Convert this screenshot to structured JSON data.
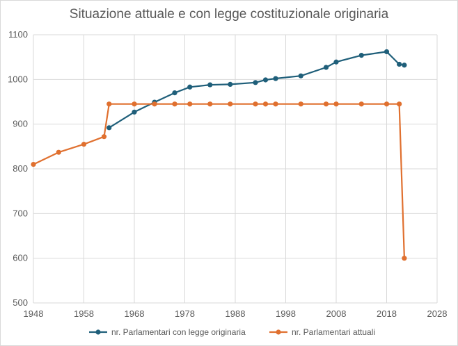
{
  "chart_data": {
    "type": "line",
    "title": "Situazione attuale e con legge costituzionale originaria",
    "xlabel": "",
    "ylabel": "",
    "xlim": [
      1948,
      2028
    ],
    "ylim": [
      500,
      1100
    ],
    "x_ticks": [
      1948,
      1958,
      1968,
      1978,
      1988,
      1998,
      2008,
      2018,
      2028
    ],
    "y_ticks": [
      500,
      600,
      700,
      800,
      900,
      1000,
      1100
    ],
    "grid": true,
    "legend_position": "bottom",
    "series": [
      {
        "name": "nr. Parlamentari con legge originaria",
        "color": "#1f5f7a",
        "points": [
          [
            1963,
            892
          ],
          [
            1968,
            927
          ],
          [
            1972,
            949
          ],
          [
            1976,
            970
          ],
          [
            1979,
            983
          ],
          [
            1983,
            988
          ],
          [
            1987,
            989
          ],
          [
            1992,
            993
          ],
          [
            1994,
            999
          ],
          [
            1996,
            1002
          ],
          [
            2001,
            1008
          ],
          [
            2006,
            1027
          ],
          [
            2008,
            1039
          ],
          [
            2013,
            1054
          ],
          [
            2018,
            1062
          ],
          [
            2020.5,
            1034
          ],
          [
            2021.5,
            1032
          ]
        ]
      },
      {
        "name": "nr. Parlamentari attuali",
        "color": "#e0702f",
        "points": [
          [
            1948,
            810
          ],
          [
            1953,
            837
          ],
          [
            1958,
            855
          ],
          [
            1962,
            872
          ],
          [
            1963,
            945
          ],
          [
            1968,
            945
          ],
          [
            1972,
            945
          ],
          [
            1976,
            945
          ],
          [
            1979,
            945
          ],
          [
            1983,
            945
          ],
          [
            1987,
            945
          ],
          [
            1992,
            945
          ],
          [
            1994,
            945
          ],
          [
            1996,
            945
          ],
          [
            2001,
            945
          ],
          [
            2006,
            945
          ],
          [
            2008,
            945
          ],
          [
            2013,
            945
          ],
          [
            2018,
            945
          ],
          [
            2020.5,
            945
          ],
          [
            2021.5,
            600
          ]
        ]
      }
    ]
  }
}
